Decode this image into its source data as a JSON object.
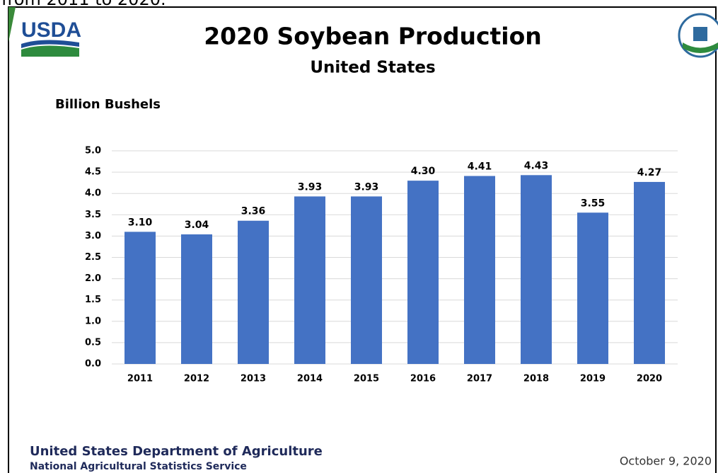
{
  "caption": "from 2011 to 2020.",
  "logo": "USDA",
  "footer": {
    "agency": "United States Department of Agriculture",
    "service": "National Agricultural Statistics Service",
    "date": "October 9, 2020"
  },
  "chart_data": {
    "type": "bar",
    "title": "2020 Soybean Production",
    "subtitle": "United States",
    "y_label": "Billion Bushels",
    "categories": [
      "2011",
      "2012",
      "2013",
      "2014",
      "2015",
      "2016",
      "2017",
      "2018",
      "2019",
      "2020"
    ],
    "values": [
      3.1,
      3.04,
      3.36,
      3.93,
      3.93,
      4.3,
      4.41,
      4.43,
      3.55,
      4.27
    ],
    "value_labels": [
      "3.10",
      "3.04",
      "3.36",
      "3.93",
      "3.93",
      "4.30",
      "4.41",
      "4.43",
      "3.55",
      "4.27"
    ],
    "color": "#4472c4",
    "ylim": [
      0,
      5
    ],
    "yticks": [
      {
        "value": 0,
        "label": "0.0"
      },
      0.5,
      {
        "value": 1,
        "label": "1.0"
      },
      1.5,
      {
        "value": 2,
        "label": "2.0"
      },
      2.5,
      {
        "value": 3,
        "label": "3.0"
      },
      3.5,
      {
        "value": 4,
        "label": "4.0"
      },
      4.5,
      {
        "value": 5,
        "label": "5.0"
      }
    ],
    "grid": true
  }
}
